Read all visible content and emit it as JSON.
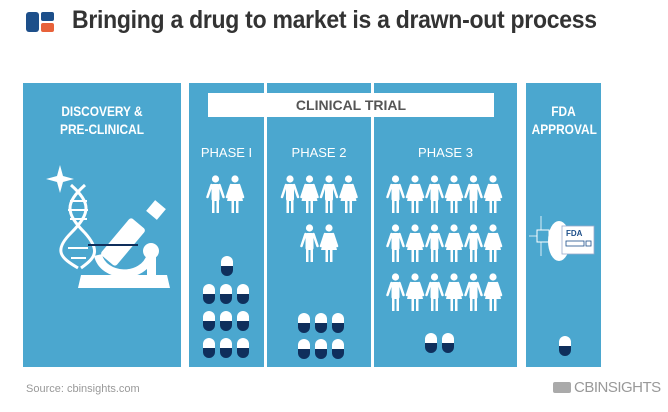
{
  "title": "Bringing a drug to market is a drawn-out process",
  "colors": {
    "panel": "#4ba7cf",
    "pill_dark": "#0f2f5c",
    "pill_light": "#ffffff",
    "title": "#333333",
    "logo_blue": "#1d4f8a",
    "logo_orange": "#e8623a"
  },
  "stages": {
    "discovery": {
      "label_1": "DISCOVERY &",
      "label_2": "PRE-CLINICAL",
      "icon": "dna-microscope-icon"
    },
    "clinical_trial": {
      "label": "CLINICAL TRIAL",
      "phases": [
        {
          "label": "PHASE I",
          "people": 2,
          "pills": 10
        },
        {
          "label": "PHASE 2",
          "people": 6,
          "pills": 6
        },
        {
          "label": "PHASE 3",
          "people": 18,
          "pills": 2
        }
      ]
    },
    "fda": {
      "label_1": "FDA",
      "label_2": "APPROVAL",
      "icon": "fda-document-icon",
      "icon_text": "FDA",
      "pills": 1
    }
  },
  "footer": {
    "source": "Source: cbinsights.com",
    "brand": "CBINSIGHTS"
  }
}
